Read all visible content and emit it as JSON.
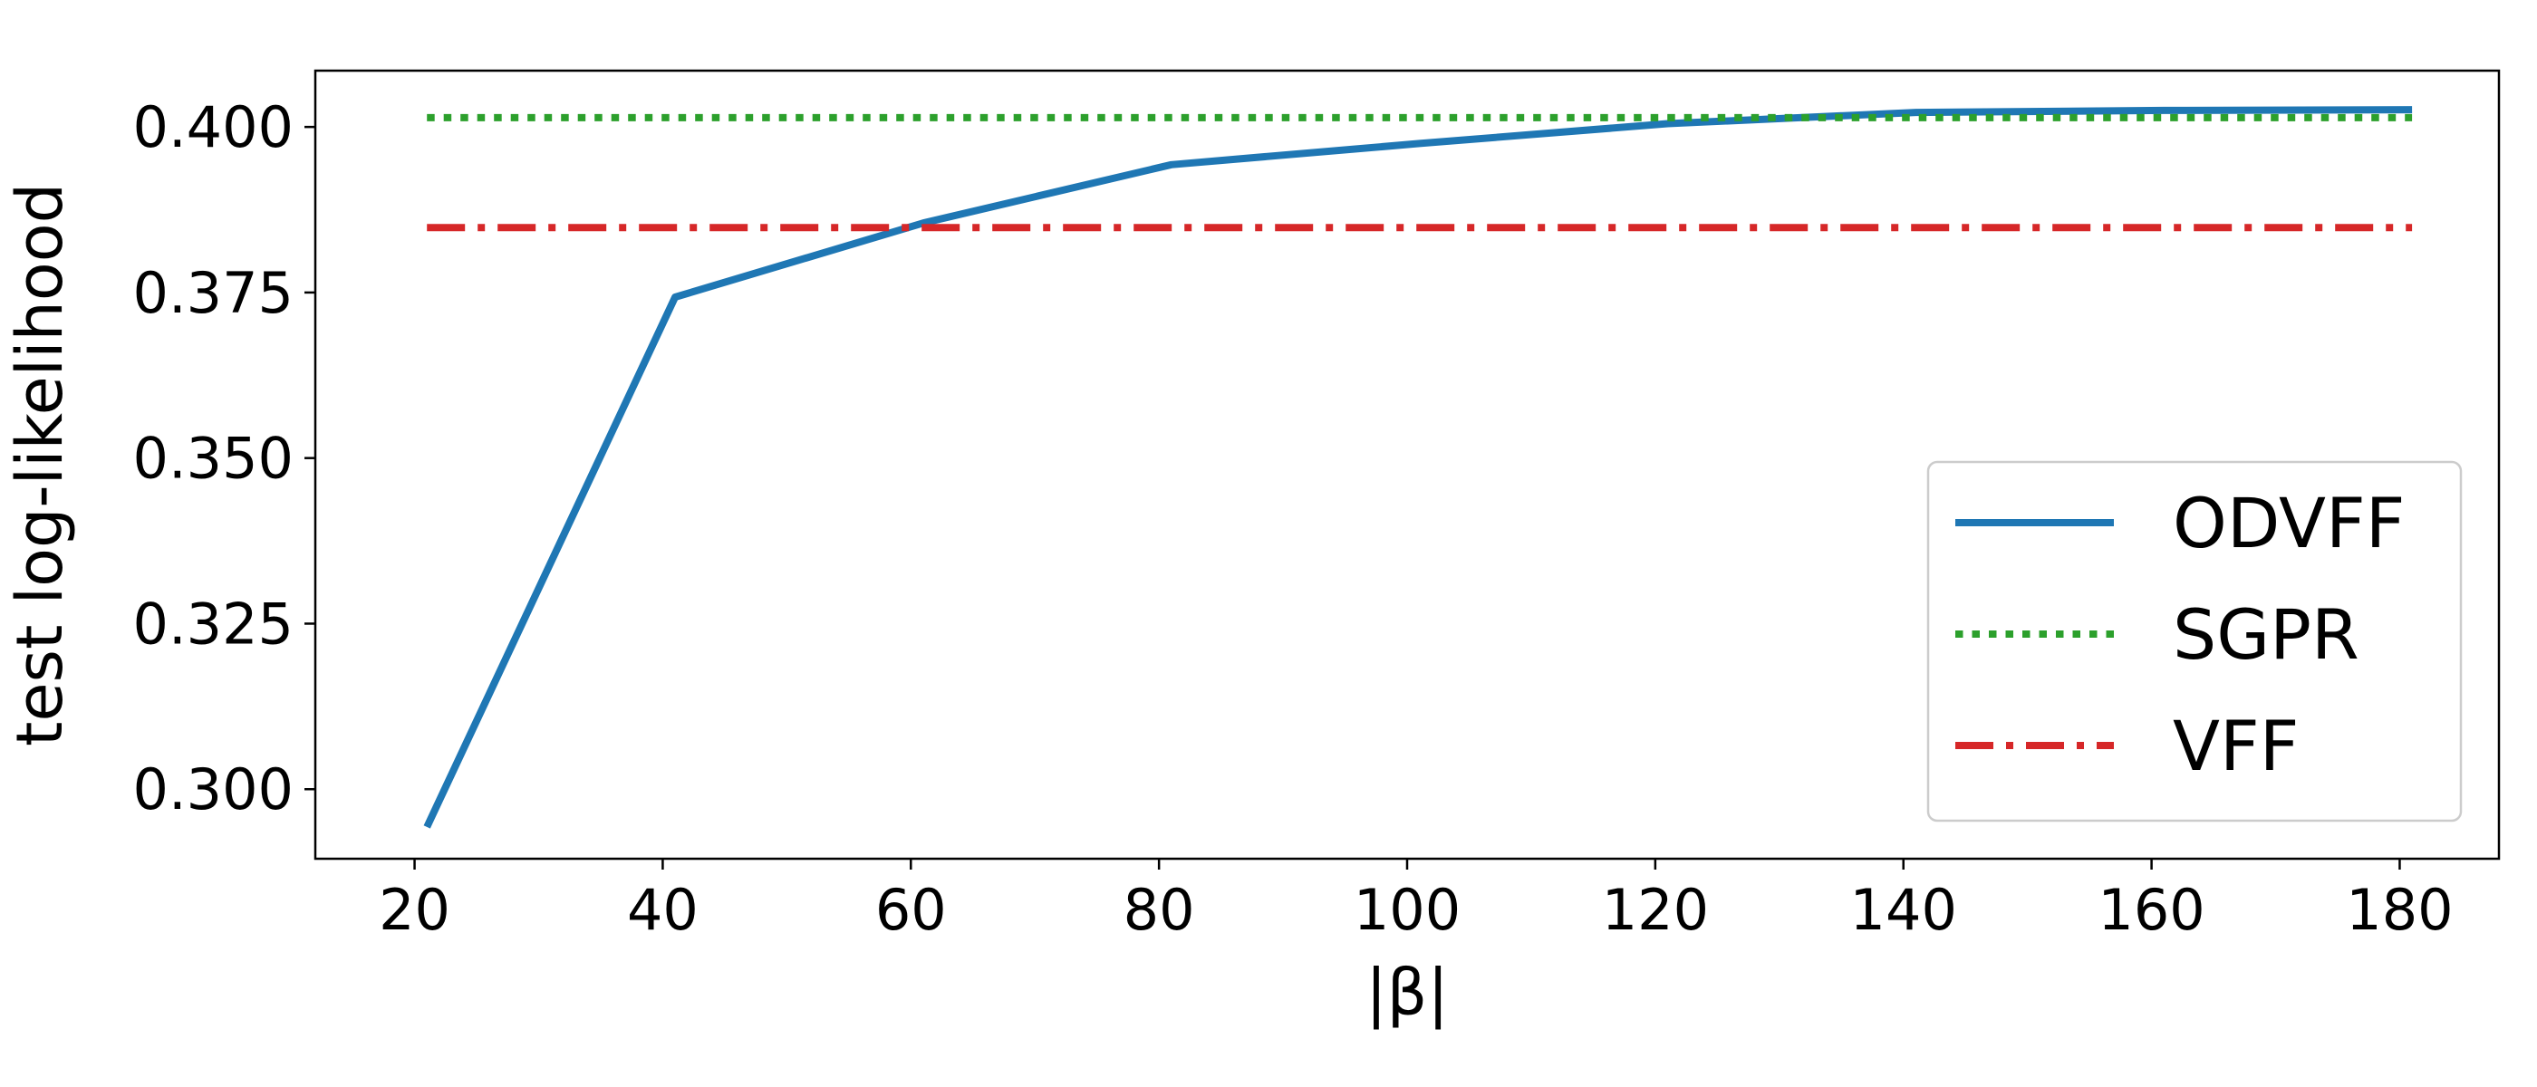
{
  "chart_data": {
    "type": "line",
    "title": "",
    "xlabel": "|β|",
    "ylabel": "test log-likelihood",
    "xlim": [
      12,
      188
    ],
    "ylim": [
      0.2895,
      0.4085
    ],
    "xticks": [
      20,
      40,
      60,
      80,
      100,
      120,
      140,
      160,
      180
    ],
    "yticks": [
      0.3,
      0.325,
      0.35,
      0.375,
      0.4
    ],
    "ytick_labels": [
      "0.300",
      "0.325",
      "0.350",
      "0.375",
      "0.400"
    ],
    "legend": {
      "position": "lower-right"
    },
    "grid": false,
    "series": [
      {
        "name": "ODVFF",
        "style": "solid",
        "color": "#1f77b4",
        "x": [
          21,
          41,
          61,
          81,
          101,
          121,
          141,
          161,
          181
        ],
        "y": [
          0.2943,
          0.3743,
          0.3855,
          0.3943,
          0.3975,
          0.4005,
          0.4022,
          0.4025,
          0.4026
        ]
      },
      {
        "name": "SGPR",
        "style": "dotted",
        "color": "#2ca02c",
        "x": [
          21,
          181
        ],
        "y": [
          0.4014,
          0.4014
        ]
      },
      {
        "name": "VFF",
        "style": "dashdot",
        "color": "#d62728",
        "x": [
          21,
          181
        ],
        "y": [
          0.3848,
          0.3848
        ]
      }
    ]
  }
}
